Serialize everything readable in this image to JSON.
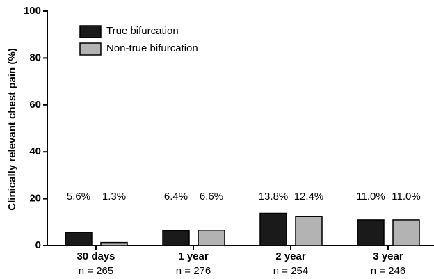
{
  "chart_data": {
    "type": "bar",
    "y_label": "Clinically relevant chest pain (%)",
    "categories": [
      "30 days",
      "1 year",
      "2 year",
      "3 year"
    ],
    "category_notes": [
      "n = 265",
      "n = 276",
      "n = 254",
      "n = 246"
    ],
    "series": [
      {
        "name": "True bifurcation",
        "color": "#1a1a1a",
        "values": [
          5.6,
          6.4,
          13.8,
          11.0
        ],
        "value_labels": [
          "5.6%",
          "6.4%",
          "13.8%",
          "11.0%"
        ]
      },
      {
        "name": "Non-true bifurcation",
        "color": "#b3b3b3",
        "values": [
          1.3,
          6.6,
          12.4,
          11.0
        ],
        "value_labels": [
          "1.3%",
          "6.6%",
          "12.4%",
          "11.0%"
        ]
      }
    ],
    "ylim": [
      0,
      100
    ],
    "yticks": [
      0,
      20,
      40,
      60,
      80,
      100
    ],
    "legend": "upper left"
  }
}
